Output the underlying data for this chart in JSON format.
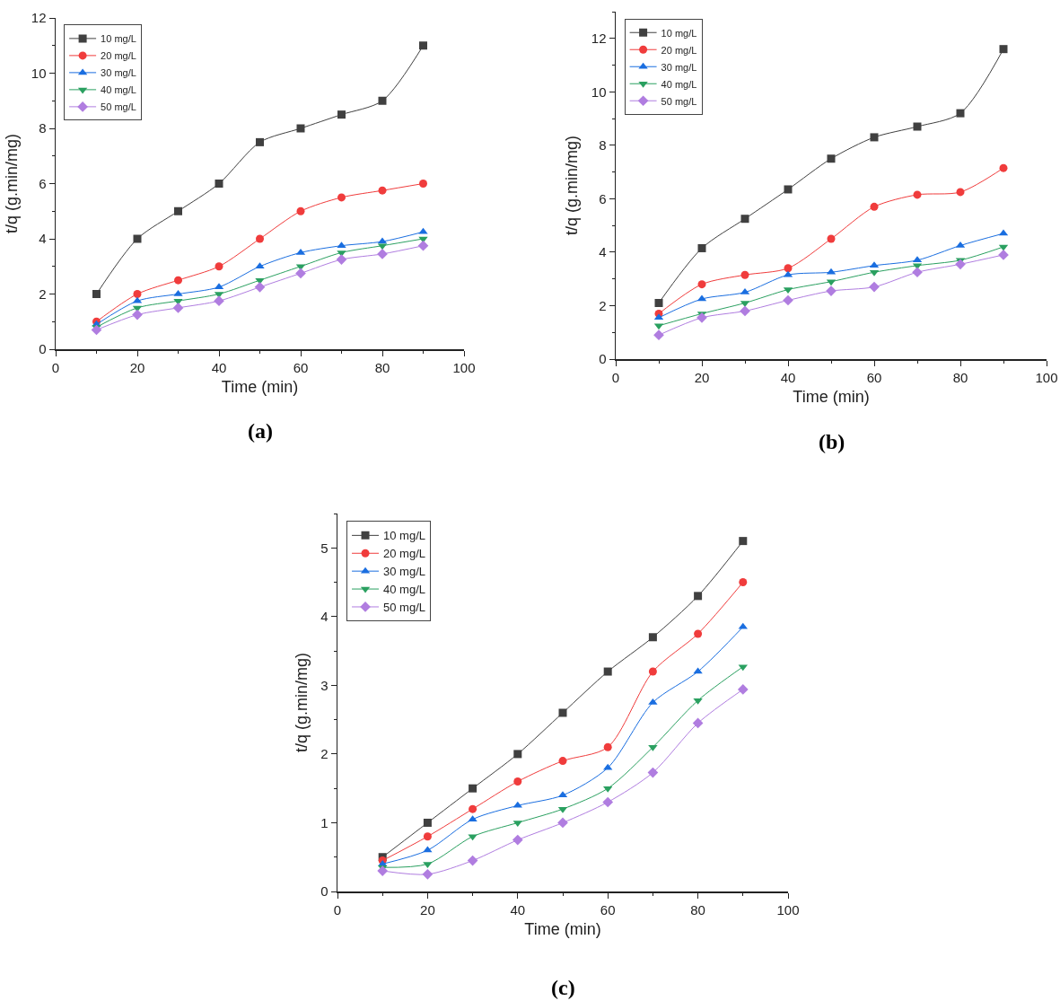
{
  "chart_data": [
    {
      "type": "line",
      "xlabel": "Time (min)",
      "ylabel": "t/q (g.min/mg)",
      "annotations": [
        "(a)"
      ],
      "x": [
        10,
        20,
        30,
        40,
        50,
        60,
        70,
        80,
        90
      ],
      "xlim": [
        0,
        100
      ],
      "xticks": [
        0,
        20,
        40,
        60,
        80,
        100
      ],
      "ylim": [
        0,
        12
      ],
      "yticks": [
        0,
        2,
        4,
        6,
        8,
        10,
        12
      ],
      "grid": false,
      "legend": "top left",
      "series": [
        {
          "name": "10 mg/L",
          "color": "#404040",
          "marker": "square",
          "values": [
            2,
            4,
            5,
            6,
            7.5,
            8,
            8.5,
            9,
            11
          ]
        },
        {
          "name": "20 mg/L",
          "color": "#f03c3c",
          "marker": "circle",
          "values": [
            1,
            2,
            2.5,
            3,
            4,
            5,
            5.5,
            5.75,
            6
          ]
        },
        {
          "name": "30 mg/L",
          "color": "#1a6ee0",
          "marker": "triangle",
          "values": [
            0.9,
            1.75,
            2,
            2.25,
            3,
            3.5,
            3.75,
            3.9,
            4.25
          ]
        },
        {
          "name": "40 mg/L",
          "color": "#2aa060",
          "marker": "triangle-down",
          "values": [
            0.8,
            1.5,
            1.75,
            2,
            2.5,
            3,
            3.5,
            3.75,
            4
          ]
        },
        {
          "name": "50 mg/L",
          "color": "#b07de0",
          "marker": "diamond",
          "values": [
            0.7,
            1.25,
            1.5,
            1.75,
            2.25,
            2.75,
            3.25,
            3.45,
            3.75
          ]
        }
      ]
    },
    {
      "type": "line",
      "xlabel": "Time (min)",
      "ylabel": "t/q (g.min/mg)",
      "annotations": [
        "(b)"
      ],
      "x": [
        10,
        20,
        30,
        40,
        50,
        60,
        70,
        80,
        90
      ],
      "xlim": [
        0,
        100
      ],
      "xticks": [
        0,
        20,
        40,
        60,
        80,
        100
      ],
      "ylim": [
        0,
        13
      ],
      "yticks": [
        0,
        2,
        4,
        6,
        8,
        10,
        12
      ],
      "grid": false,
      "legend": "top left",
      "series": [
        {
          "name": "10 mg/L",
          "color": "#404040",
          "marker": "square",
          "values": [
            2.1,
            4.15,
            5.25,
            6.35,
            7.5,
            8.3,
            8.7,
            9.2,
            11.6
          ]
        },
        {
          "name": "20 mg/L",
          "color": "#f03c3c",
          "marker": "circle",
          "values": [
            1.7,
            2.8,
            3.15,
            3.4,
            4.5,
            5.7,
            6.15,
            6.25,
            7.15
          ]
        },
        {
          "name": "30 mg/L",
          "color": "#1a6ee0",
          "marker": "triangle",
          "values": [
            1.55,
            2.25,
            2.5,
            3.15,
            3.25,
            3.5,
            3.7,
            4.25,
            4.7
          ]
        },
        {
          "name": "40 mg/L",
          "color": "#2aa060",
          "marker": "triangle-down",
          "values": [
            1.25,
            1.7,
            2.1,
            2.6,
            2.9,
            3.25,
            3.5,
            3.7,
            4.2
          ]
        },
        {
          "name": "50 mg/L",
          "color": "#b07de0",
          "marker": "diamond",
          "values": [
            0.9,
            1.55,
            1.8,
            2.2,
            2.55,
            2.7,
            3.25,
            3.55,
            3.9
          ]
        }
      ]
    },
    {
      "type": "line",
      "xlabel": "Time (min)",
      "ylabel": "t/q (g.min/mg)",
      "annotations": [
        "(c)"
      ],
      "x": [
        10,
        20,
        30,
        40,
        50,
        60,
        70,
        80,
        90
      ],
      "xlim": [
        0,
        100
      ],
      "xticks": [
        0,
        20,
        40,
        60,
        80,
        100
      ],
      "ylim": [
        0,
        5.5
      ],
      "yticks": [
        0,
        1,
        2,
        3,
        4,
        5
      ],
      "grid": false,
      "legend": "top left",
      "series": [
        {
          "name": "10 mg/L",
          "color": "#404040",
          "marker": "square",
          "values": [
            0.5,
            1,
            1.5,
            2,
            2.6,
            3.2,
            3.7,
            4.3,
            5.1
          ]
        },
        {
          "name": "20 mg/L",
          "color": "#f03c3c",
          "marker": "circle",
          "values": [
            0.45,
            0.8,
            1.2,
            1.6,
            1.9,
            2.1,
            3.2,
            3.75,
            4.5
          ]
        },
        {
          "name": "30 mg/L",
          "color": "#1a6ee0",
          "marker": "triangle",
          "values": [
            0.4,
            0.6,
            1.05,
            1.25,
            1.4,
            1.8,
            2.75,
            3.2,
            3.85
          ]
        },
        {
          "name": "40 mg/L",
          "color": "#2aa060",
          "marker": "triangle-down",
          "values": [
            0.35,
            0.4,
            0.8,
            1.0,
            1.2,
            1.5,
            2.1,
            2.78,
            3.27
          ]
        },
        {
          "name": "50 mg/L",
          "color": "#b07de0",
          "marker": "diamond",
          "values": [
            0.3,
            0.25,
            0.45,
            0.75,
            1.0,
            1.3,
            1.73,
            2.45,
            2.94
          ]
        }
      ]
    }
  ]
}
